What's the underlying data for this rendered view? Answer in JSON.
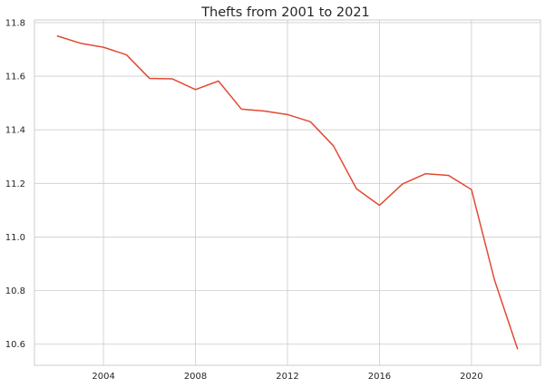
{
  "chart_data": {
    "type": "line",
    "title": "Thefts from 2001 to 2021",
    "xlabel": "",
    "ylabel": "",
    "x": [
      2002,
      2003,
      2004,
      2005,
      2006,
      2007,
      2008,
      2009,
      2010,
      2011,
      2012,
      2013,
      2014,
      2015,
      2016,
      2017,
      2018,
      2019,
      2020,
      2021,
      2022
    ],
    "series": [
      {
        "values": [
          11.75,
          11.723,
          11.708,
          11.68,
          11.592,
          11.59,
          11.55,
          11.582,
          11.477,
          11.47,
          11.457,
          11.43,
          11.34,
          11.18,
          11.118,
          11.198,
          11.236,
          11.23,
          11.177,
          10.84,
          10.583
        ],
        "color": "#e24a33"
      }
    ],
    "xlim": [
      2001,
      2023
    ],
    "ylim": [
      10.521,
      11.81
    ],
    "xticks": [
      "2004",
      "2008",
      "2012",
      "2016",
      "2020"
    ],
    "yticks": [
      "10.6",
      "10.8",
      "11.0",
      "11.2",
      "11.4",
      "11.6",
      "11.8"
    ],
    "grid": true,
    "style": "whitegrid",
    "grid_color": "#cccccc",
    "spine_color": "#cccccc"
  }
}
